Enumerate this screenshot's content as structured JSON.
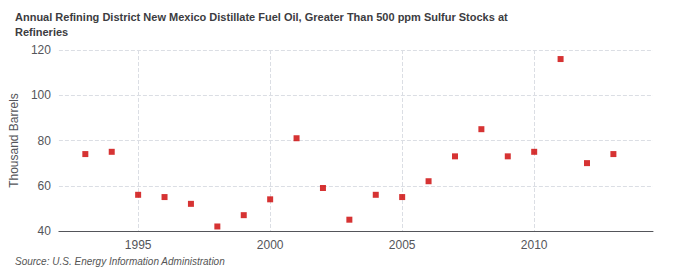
{
  "chart_data": {
    "type": "scatter",
    "title": "Annual Refining District New Mexico Distillate Fuel Oil, Greater Than 500 ppm Sulfur Stocks at\nRefineries",
    "ylabel": "Thousand Barrels",
    "source": "Source: U.S. Energy Information Administration",
    "x": [
      1993,
      1994,
      1995,
      1996,
      1997,
      1998,
      1999,
      2000,
      2001,
      2002,
      2003,
      2004,
      2005,
      2006,
      2007,
      2008,
      2009,
      2010,
      2011,
      2012,
      2013
    ],
    "values": [
      74,
      75,
      56,
      55,
      52,
      42,
      47,
      54,
      81,
      59,
      45,
      56,
      55,
      62,
      73,
      85,
      73,
      75,
      116,
      70,
      74
    ],
    "color": "#cc0000",
    "marker": "square",
    "xlim": [
      1992.0,
      2014.5
    ],
    "xticks": [
      1995,
      2000,
      2005,
      2010
    ],
    "ylim": [
      40,
      120
    ],
    "yticks": [
      40,
      60,
      80,
      100,
      120
    ],
    "grid": true
  }
}
